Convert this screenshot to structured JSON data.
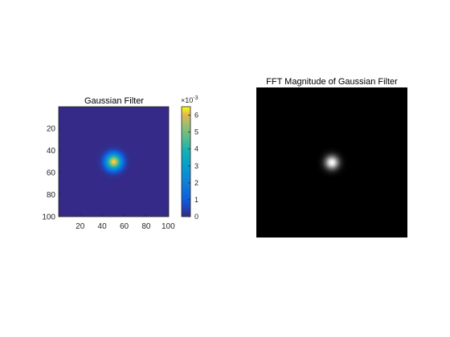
{
  "chart_data": [
    {
      "type": "heatmap",
      "title": "Gaussian Filter",
      "xlabel": "",
      "ylabel": "",
      "xlim": [
        0.5,
        100.5
      ],
      "ylim": [
        0.5,
        100.5
      ],
      "y_reversed": true,
      "x_ticks": [
        20,
        40,
        60,
        80,
        100
      ],
      "y_ticks": [
        20,
        40,
        60,
        80,
        100
      ],
      "x_tick_labels": [
        "20",
        "40",
        "60",
        "80",
        "100"
      ],
      "y_tick_labels": [
        "20",
        "40",
        "60",
        "80",
        "100"
      ],
      "size": [
        100,
        100
      ],
      "gaussian": {
        "center_x": 50.5,
        "center_y": 50.5,
        "sigma": 5,
        "peak": 0.0064
      },
      "colormap": "parula",
      "colorbar": {
        "range": [
          0,
          0.0065
        ],
        "ticks": [
          0,
          1,
          2,
          3,
          4,
          5,
          6
        ],
        "tick_labels": [
          "0",
          "1",
          "2",
          "3",
          "4",
          "5",
          "6"
        ],
        "exponent_label": "×10",
        "exponent": "-3"
      }
    },
    {
      "type": "heatmap",
      "title": "FFT Magnitude of Gaussian Filter",
      "xlabel": "",
      "ylabel": "",
      "colormap": "gray",
      "axis": "off",
      "size": [
        100,
        100
      ],
      "gaussian": {
        "center_x": 50.5,
        "center_y": 50.5,
        "sigma": 3.2,
        "peak": 1.0
      }
    }
  ]
}
